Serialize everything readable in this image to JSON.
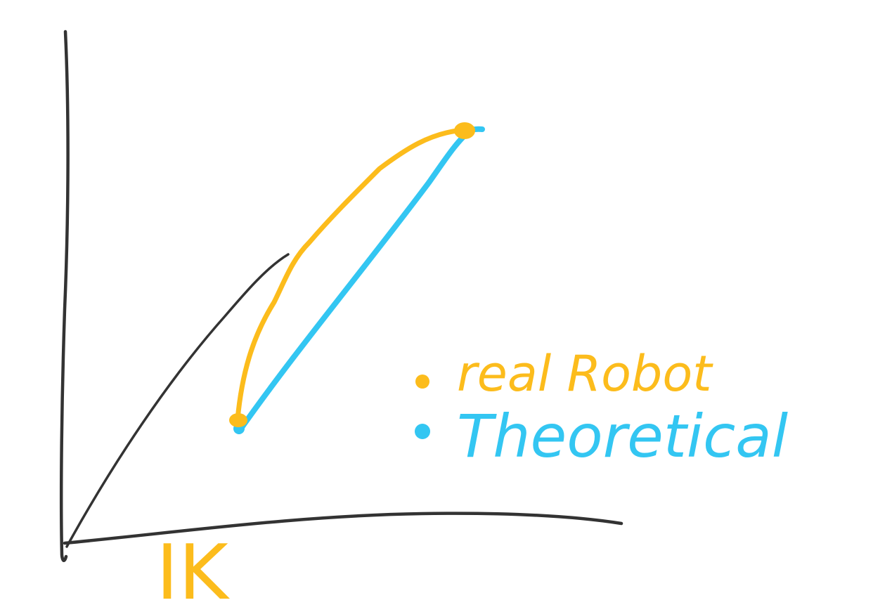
{
  "colors": {
    "axis": "#333333",
    "real_robot": "#fcbc1c",
    "theoretical": "#33c6f2",
    "background": "#ffffff"
  },
  "legend": {
    "items": [
      {
        "label": "real Robot",
        "color": "#fcbc1c"
      },
      {
        "label": "Theoretical",
        "color": "#33c6f2"
      }
    ]
  },
  "x_axis_label": "IK"
}
